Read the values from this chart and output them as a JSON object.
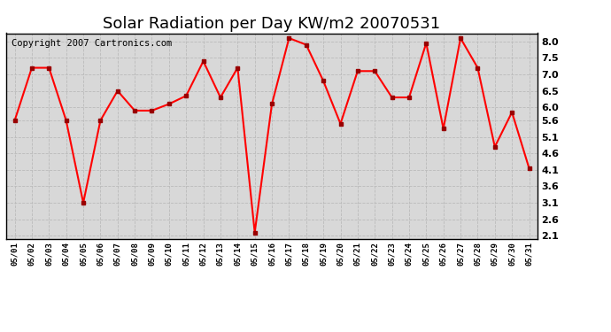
{
  "title": "Solar Radiation per Day KW/m2 20070531",
  "copyright": "Copyright 2007 Cartronics.com",
  "dates": [
    "05/01",
    "05/02",
    "05/03",
    "05/04",
    "05/05",
    "05/06",
    "05/07",
    "05/08",
    "05/09",
    "05/10",
    "05/11",
    "05/12",
    "05/13",
    "05/14",
    "05/15",
    "05/16",
    "05/17",
    "05/18",
    "05/19",
    "05/20",
    "05/21",
    "05/22",
    "05/23",
    "05/24",
    "05/25",
    "05/26",
    "05/27",
    "05/28",
    "05/29",
    "05/30",
    "05/31"
  ],
  "values": [
    5.6,
    7.2,
    7.2,
    5.6,
    3.1,
    5.6,
    6.5,
    5.9,
    5.9,
    6.1,
    6.35,
    7.4,
    6.3,
    7.2,
    2.2,
    6.1,
    8.1,
    7.9,
    6.8,
    5.5,
    7.1,
    7.1,
    6.3,
    6.3,
    7.95,
    5.35,
    8.1,
    7.2,
    4.8,
    5.85,
    4.15
  ],
  "line_color": "#ff0000",
  "marker_color": "#990000",
  "bg_color": "#ffffff",
  "plot_bg_color": "#d8d8d8",
  "grid_color": "#bbbbbb",
  "ylim": [
    2.0,
    8.25
  ],
  "yticks": [
    2.1,
    2.6,
    3.1,
    3.6,
    4.1,
    4.6,
    5.1,
    5.6,
    6.0,
    6.5,
    7.0,
    7.5,
    8.0
  ],
  "title_fontsize": 13,
  "copyright_fontsize": 7.5
}
